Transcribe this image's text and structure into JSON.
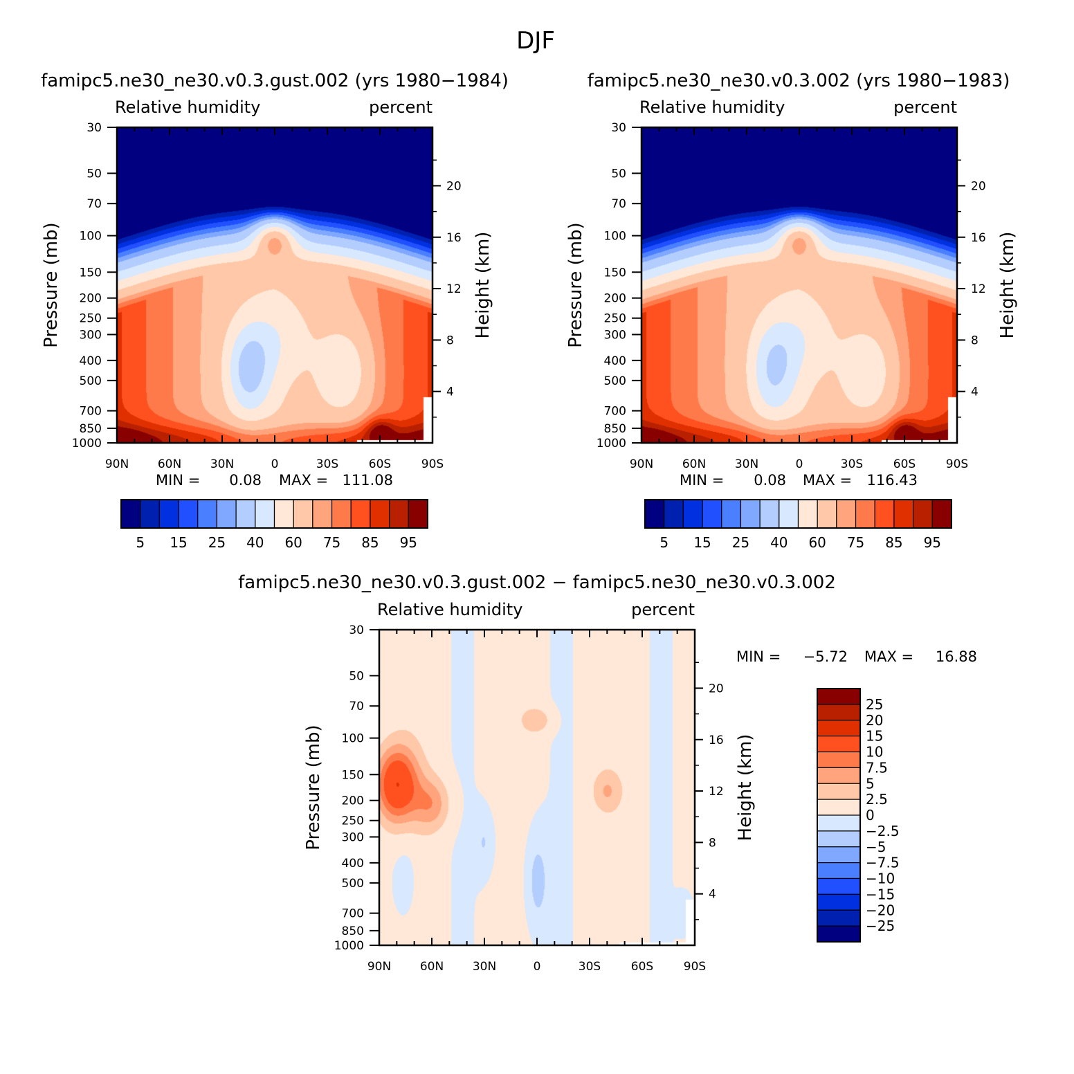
{
  "figure": {
    "title": "DJF"
  },
  "panels": [
    {
      "title": "famipc5.ne30_ne30.v0.3.gust.002 (yrs 1980−1984)",
      "left_label": "Relative humidity",
      "right_label": "percent",
      "ylabel": "Pressure (mb)",
      "ylabel_right": "Height (km)",
      "minmax": {
        "min_label": "MIN =",
        "min_value": "0.08",
        "max_label": "MAX =",
        "max_value": "111.08"
      }
    },
    {
      "title": "famipc5.ne30_ne30.v0.3.002 (yrs 1980−1983)",
      "left_label": "Relative humidity",
      "right_label": "percent",
      "ylabel": "Pressure (mb)",
      "ylabel_right": "Height (km)",
      "minmax": {
        "min_label": "MIN =",
        "min_value": "0.08",
        "max_label": "MAX =",
        "max_value": "116.43"
      }
    },
    {
      "title": "famipc5.ne30_ne30.v0.3.gust.002 − famipc5.ne30_ne30.v0.3.002",
      "left_label": "Relative humidity",
      "right_label": "percent",
      "ylabel": "Pressure (mb)",
      "ylabel_right": "Height (km)",
      "minmax": {
        "min_label": "MIN =",
        "min_value": "−5.72",
        "max_label": "MAX =",
        "max_value": "16.88"
      }
    }
  ],
  "colorbars": {
    "rh_colors": [
      "#000080",
      "#0020b0",
      "#0030e0",
      "#2050ff",
      "#4a80ff",
      "#80a8ff",
      "#b3cdff",
      "#d8e8ff",
      "#ffe8d8",
      "#ffc8a8",
      "#ffa47c",
      "#ff7a4a",
      "#ff5020",
      "#e03000",
      "#b82000",
      "#880000"
    ],
    "rh_labels": [
      "5",
      "15",
      "25",
      "40",
      "60",
      "75",
      "85",
      "95"
    ],
    "diff_colors": [
      "#880000",
      "#b82000",
      "#e03000",
      "#ff5020",
      "#ff7a4a",
      "#ffa47c",
      "#ffc8a8",
      "#ffe8d8",
      "#d8e8ff",
      "#b3cdff",
      "#80a8ff",
      "#4a80ff",
      "#2050ff",
      "#0030e0",
      "#0020b0",
      "#000080"
    ],
    "diff_labels": [
      "25",
      "20",
      "15",
      "10",
      "7.5",
      "5",
      "2.5",
      "0",
      "−2.5",
      "−5",
      "−7.5",
      "−10",
      "−15",
      "−20",
      "−25"
    ]
  },
  "chart_data": [
    {
      "type": "heatmap",
      "title": "famipc5.ne30_ne30.v0.3.gust.002 (yrs 1980−1984)",
      "variable": "Relative humidity",
      "units": "percent",
      "xlabel": "",
      "ylabel": "Pressure (mb)",
      "ylabel_right": "Height (km)",
      "x_ticks": [
        "90N",
        "60N",
        "30N",
        "0",
        "30S",
        "60S",
        "90S"
      ],
      "x_range": [
        90,
        -90
      ],
      "y_ticks": [
        30,
        50,
        70,
        100,
        150,
        200,
        250,
        300,
        400,
        500,
        700,
        850,
        1000
      ],
      "y_range": [
        30,
        1000
      ],
      "y_scale": "log",
      "y_ticks_right": [
        20,
        16,
        12,
        8,
        4
      ],
      "contour_levels": [
        5,
        10,
        15,
        20,
        25,
        30,
        40,
        50,
        60,
        70,
        75,
        80,
        85,
        90,
        95
      ],
      "min": 0.08,
      "max": 111.08,
      "features": [
        {
          "lat": 0,
          "p": 100,
          "value": 85
        },
        {
          "lat": -40,
          "p": 450,
          "value": 38
        },
        {
          "lat": 15,
          "p": 450,
          "value": 25
        },
        {
          "lat": -60,
          "p": 880,
          "value": 100
        },
        {
          "lat": 85,
          "p": 960,
          "value": 100
        },
        {
          "lat": 0,
          "p": 950,
          "value": 88
        }
      ]
    },
    {
      "type": "heatmap",
      "title": "famipc5.ne30_ne30.v0.3.002 (yrs 1980−1983)",
      "variable": "Relative humidity",
      "units": "percent",
      "xlabel": "",
      "ylabel": "Pressure (mb)",
      "ylabel_right": "Height (km)",
      "x_ticks": [
        "90N",
        "60N",
        "30N",
        "0",
        "30S",
        "60S",
        "90S"
      ],
      "x_range": [
        90,
        -90
      ],
      "y_ticks": [
        30,
        50,
        70,
        100,
        150,
        200,
        250,
        300,
        400,
        500,
        700,
        850,
        1000
      ],
      "y_range": [
        30,
        1000
      ],
      "y_scale": "log",
      "y_ticks_right": [
        20,
        16,
        12,
        8,
        4
      ],
      "contour_levels": [
        5,
        10,
        15,
        20,
        25,
        30,
        40,
        50,
        60,
        70,
        75,
        80,
        85,
        90,
        95
      ],
      "min": 0.08,
      "max": 116.43,
      "features": [
        {
          "lat": 0,
          "p": 100,
          "value": 85
        },
        {
          "lat": -40,
          "p": 450,
          "value": 38
        },
        {
          "lat": 15,
          "p": 450,
          "value": 28
        },
        {
          "lat": -60,
          "p": 880,
          "value": 100
        },
        {
          "lat": 85,
          "p": 960,
          "value": 100
        },
        {
          "lat": 0,
          "p": 950,
          "value": 88
        }
      ]
    },
    {
      "type": "heatmap",
      "title": "famipc5.ne30_ne30.v0.3.gust.002 − famipc5.ne30_ne30.v0.3.002",
      "variable": "Relative humidity",
      "units": "percent",
      "xlabel": "",
      "ylabel": "Pressure (mb)",
      "ylabel_right": "Height (km)",
      "x_ticks": [
        "90N",
        "60N",
        "30N",
        "0",
        "30S",
        "60S",
        "90S"
      ],
      "x_range": [
        90,
        -90
      ],
      "y_ticks": [
        30,
        50,
        70,
        100,
        150,
        200,
        250,
        300,
        400,
        500,
        700,
        850,
        1000
      ],
      "y_range": [
        30,
        1000
      ],
      "y_scale": "log",
      "y_ticks_right": [
        20,
        16,
        12,
        8,
        4
      ],
      "contour_levels": [
        -25,
        -20,
        -15,
        -10,
        -7.5,
        -5,
        -2.5,
        0,
        2.5,
        5,
        7.5,
        10,
        15,
        20,
        25
      ],
      "min": -5.72,
      "max": 16.88,
      "features": [
        {
          "lat": 80,
          "p": 150,
          "value": 12
        },
        {
          "lat": 60,
          "p": 200,
          "value": 7
        },
        {
          "lat": -40,
          "p": 180,
          "value": 4
        },
        {
          "lat": 0,
          "p": 85,
          "value": 4
        },
        {
          "lat": 0,
          "p": 500,
          "value": -4
        },
        {
          "lat": 30,
          "p": 350,
          "value": -3
        },
        {
          "lat": -85,
          "p": 750,
          "value": -3
        }
      ]
    }
  ]
}
